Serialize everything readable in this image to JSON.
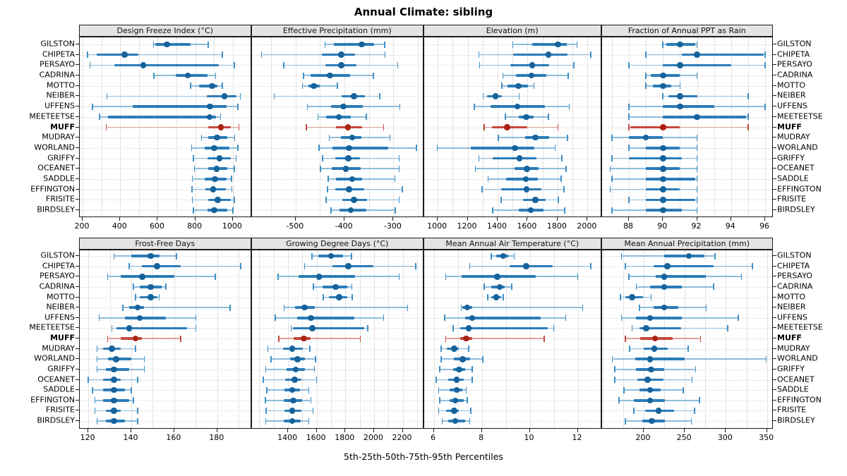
{
  "title": "Annual Climate: sibling",
  "caption": "5th-25th-50th-75th-95th Percentiles",
  "highlight_station": "MUFF",
  "stations": [
    "GILSTON",
    "CHIPETA",
    "PERSAYO",
    "CADRINA",
    "MOTTO",
    "NEIBER",
    "UFFENS",
    "MEETEETSE",
    "MUFF",
    "MUDRAY",
    "WORLAND",
    "GRIFFY",
    "OCEANET",
    "SADDLE",
    "EFFINGTON",
    "FRISITE",
    "BIRDSLEY"
  ],
  "colors": {
    "blue_whisker": "#8ebcdc",
    "blue_cap": "#4090c5",
    "blue_bar": "#2b7cb8",
    "blue_dot": "#16639c",
    "red_whisker": "#e0a19a",
    "red_cap": "#c5483c",
    "red_bar": "#c5483c",
    "red_dot": "#ac2215",
    "grid": "#c9c9c9",
    "row_guide": "#dadada",
    "strip_bg": "#e4e4e4",
    "border": "#1c1c1c",
    "text": "#000000"
  },
  "chart_data": [
    {
      "type": "dotplot",
      "row": 0,
      "col": 0,
      "title": "Design Freeze Index (°C)",
      "xlim": [
        185,
        1100
      ],
      "ticks": [
        200,
        400,
        600,
        800,
        1000
      ],
      "minor_step": 100,
      "percentiles": [
        5,
        25,
        50,
        75,
        95
      ],
      "values": [
        [
          578,
          588,
          650,
          775,
          870
        ],
        [
          227,
          277,
          424,
          498,
          945
        ],
        [
          240,
          370,
          523,
          925,
          1008
        ],
        [
          580,
          695,
          760,
          864,
          908
        ],
        [
          774,
          820,
          889,
          918,
          943
        ],
        [
          330,
          860,
          955,
          1020,
          1040
        ],
        [
          252,
          467,
          879,
          966,
          1026
        ],
        [
          291,
          334,
          876,
          909,
          934
        ],
        [
          326,
          870,
          937,
          990,
          1033
        ],
        [
          833,
          868,
          916,
          970,
          1010
        ],
        [
          780,
          851,
          901,
          980,
          1026
        ],
        [
          791,
          864,
          929,
          991,
          1018
        ],
        [
          795,
          870,
          914,
          970,
          1008
        ],
        [
          785,
          851,
          905,
          966,
          993
        ],
        [
          783,
          855,
          895,
          961,
          995
        ],
        [
          785,
          870,
          920,
          989,
          1008
        ],
        [
          791,
          864,
          901,
          970,
          1001
        ]
      ]
    },
    {
      "type": "dotplot",
      "row": 0,
      "col": 1,
      "title": "Effective Precipitation (mm)",
      "xlim": [
        -590,
        -237
      ],
      "ticks": [
        -500,
        -400,
        -300
      ],
      "minor_step": 50,
      "percentiles": [
        5,
        25,
        50,
        75,
        95
      ],
      "values": [
        [
          -440,
          -422,
          -365,
          -340,
          -318
        ],
        [
          -570,
          -446,
          -407,
          -379,
          -317
        ],
        [
          -524,
          -439,
          -407,
          -375,
          -291
        ],
        [
          -484,
          -470,
          -430,
          -389,
          -341
        ],
        [
          -486,
          -474,
          -463,
          -450,
          -415
        ],
        [
          -544,
          -406,
          -381,
          -358,
          -328
        ],
        [
          -476,
          -428,
          -402,
          -362,
          -287
        ],
        [
          -454,
          -438,
          -412,
          -387,
          -355
        ],
        [
          -478,
          -417,
          -393,
          -364,
          -320
        ],
        [
          -431,
          -407,
          -384,
          -366,
          -307
        ],
        [
          -452,
          -424,
          -391,
          -311,
          -253
        ],
        [
          -445,
          -419,
          -392,
          -369,
          -288
        ],
        [
          -449,
          -426,
          -397,
          -367,
          -288
        ],
        [
          -433,
          -417,
          -384,
          -364,
          -297
        ],
        [
          -435,
          -419,
          -391,
          -360,
          -282
        ],
        [
          -438,
          -405,
          -381,
          -354,
          -288
        ],
        [
          -428,
          -410,
          -387,
          -355,
          -296
        ]
      ]
    },
    {
      "type": "dotplot",
      "row": 0,
      "col": 2,
      "title": "Elevation (m)",
      "xlim": [
        910,
        2095
      ],
      "ticks": [
        1000,
        1200,
        1400,
        1600,
        1800,
        2000
      ],
      "minor_step": 100,
      "percentiles": [
        5,
        25,
        50,
        75,
        95
      ],
      "values": [
        [
          1502,
          1629,
          1802,
          1863,
          1930
        ],
        [
          1275,
          1506,
          1739,
          1867,
          2021
        ],
        [
          1279,
          1483,
          1632,
          1742,
          1910
        ],
        [
          1436,
          1522,
          1627,
          1726,
          1871
        ],
        [
          1428,
          1467,
          1538,
          1601,
          1643
        ],
        [
          1303,
          1331,
          1386,
          1428,
          1543
        ],
        [
          1245,
          1354,
          1533,
          1715,
          1878
        ],
        [
          1452,
          1543,
          1590,
          1640,
          1739
        ],
        [
          1311,
          1361,
          1463,
          1596,
          1802
        ],
        [
          1405,
          1585,
          1651,
          1742,
          1867
        ],
        [
          997,
          1220,
          1515,
          1643,
          1784
        ],
        [
          1275,
          1366,
          1546,
          1659,
          1828
        ],
        [
          1251,
          1511,
          1596,
          1675,
          1857
        ],
        [
          1337,
          1456,
          1588,
          1667,
          1824
        ],
        [
          1295,
          1423,
          1593,
          1690,
          1844
        ],
        [
          1423,
          1569,
          1653,
          1722,
          1805
        ],
        [
          1366,
          1543,
          1621,
          1706,
          1847
        ]
      ]
    },
    {
      "type": "dotplot",
      "row": 0,
      "col": 3,
      "title": "Fraction of Annual PPT as Rain",
      "xlim": [
        86.4,
        96.5
      ],
      "ticks": [
        88,
        90,
        92,
        94,
        96
      ],
      "minor_step": 1,
      "percentiles": [
        5,
        25,
        50,
        75,
        95
      ],
      "values": [
        [
          90.0,
          90.2,
          91.0,
          91.9,
          92.0
        ],
        [
          89.0,
          91.1,
          92.0,
          95.9,
          96.0
        ],
        [
          88.0,
          90.0,
          91.0,
          94.0,
          96.0
        ],
        [
          89.0,
          89.3,
          90.0,
          91.0,
          92.0
        ],
        [
          89.0,
          89.4,
          90.0,
          90.5,
          91.0
        ],
        [
          90.0,
          90.3,
          91.0,
          92.0,
          95.0
        ],
        [
          88.0,
          90.0,
          91.0,
          93.0,
          96.0
        ],
        [
          88.0,
          90.0,
          92.0,
          94.9,
          95.0
        ],
        [
          88.0,
          88.1,
          90.0,
          91.0,
          95.0
        ],
        [
          87.0,
          88.0,
          89.0,
          90.0,
          92.0
        ],
        [
          88.0,
          89.0,
          90.0,
          91.0,
          92.0
        ],
        [
          87.0,
          88.0,
          90.0,
          91.1,
          92.0
        ],
        [
          86.9,
          89.0,
          90.0,
          91.0,
          92.0
        ],
        [
          87.0,
          89.0,
          90.0,
          91.9,
          92.0
        ],
        [
          86.9,
          89.0,
          90.0,
          91.0,
          92.0
        ],
        [
          88.0,
          89.0,
          90.0,
          91.9,
          92.0
        ],
        [
          87.0,
          89.0,
          90.0,
          91.1,
          92.0
        ]
      ]
    },
    {
      "type": "dotplot",
      "row": 1,
      "col": 0,
      "title": "Frost-Free Days",
      "xlim": [
        116,
        196
      ],
      "ticks": [
        120,
        140,
        160,
        180
      ],
      "minor_step": 10,
      "percentiles": [
        5,
        25,
        50,
        75,
        95
      ],
      "values": [
        [
          132,
          140,
          149,
          153,
          161
        ],
        [
          139,
          145,
          152,
          163,
          191
        ],
        [
          129,
          135,
          145,
          160,
          179
        ],
        [
          141,
          144,
          149,
          154,
          156
        ],
        [
          142,
          144,
          149,
          152,
          153
        ],
        [
          136,
          139,
          143,
          146,
          186
        ],
        [
          125,
          137,
          144,
          156,
          170
        ],
        [
          131,
          133,
          139,
          166,
          170
        ],
        [
          129,
          135,
          142,
          145,
          163
        ],
        [
          124,
          127,
          131,
          135,
          142
        ],
        [
          124,
          129,
          133,
          140,
          146
        ],
        [
          124,
          128,
          132,
          139,
          146
        ],
        [
          120,
          127,
          132,
          135,
          143
        ],
        [
          122,
          127,
          132,
          137,
          140
        ],
        [
          123,
          127,
          132,
          139,
          141
        ],
        [
          123,
          128,
          132,
          135,
          143
        ],
        [
          124,
          128,
          132,
          137,
          143
        ]
      ]
    },
    {
      "type": "dotplot",
      "row": 1,
      "col": 1,
      "title": "Growing Degree Days (°C)",
      "xlim": [
        1146,
        2350
      ],
      "ticks": [
        1400,
        1600,
        1800,
        2000,
        2200
      ],
      "minor_step": 100,
      "percentiles": [
        5,
        25,
        50,
        75,
        95
      ],
      "values": [
        [
          1567,
          1613,
          1700,
          1785,
          1842
        ],
        [
          1515,
          1711,
          1821,
          1993,
          2290
        ],
        [
          1331,
          1474,
          1616,
          1867,
          2175
        ],
        [
          1577,
          1641,
          1731,
          1815,
          1846
        ],
        [
          1646,
          1687,
          1756,
          1813,
          1847
        ],
        [
          1372,
          1449,
          1515,
          1585,
          2235
        ],
        [
          1310,
          1465,
          1559,
          1862,
          2067
        ],
        [
          1421,
          1432,
          1569,
          1929,
          1957
        ],
        [
          1335,
          1437,
          1510,
          1556,
          1905
        ],
        [
          1260,
          1367,
          1428,
          1501,
          1551
        ],
        [
          1280,
          1413,
          1465,
          1520,
          1592
        ],
        [
          1245,
          1388,
          1454,
          1520,
          1585
        ],
        [
          1228,
          1380,
          1446,
          1495,
          1600
        ],
        [
          1252,
          1375,
          1428,
          1482,
          1544
        ],
        [
          1241,
          1370,
          1436,
          1498,
          1559
        ],
        [
          1247,
          1375,
          1428,
          1493,
          1575
        ],
        [
          1244,
          1370,
          1429,
          1490,
          1544
        ]
      ]
    },
    {
      "type": "dotplot",
      "row": 1,
      "col": 2,
      "title": "Mean Annual Air Temperature (°C)",
      "xlim": [
        5.6,
        13.0
      ],
      "ticks": [
        6,
        8,
        10,
        12
      ],
      "minor_step": 1,
      "percentiles": [
        5,
        25,
        50,
        75,
        95
      ],
      "values": [
        [
          8.4,
          8.6,
          8.9,
          9.1,
          9.35
        ],
        [
          7.5,
          9.15,
          9.85,
          10.95,
          12.55
        ],
        [
          6.5,
          7.15,
          8.65,
          10.25,
          12.0
        ],
        [
          8.1,
          8.4,
          8.75,
          8.95,
          9.25
        ],
        [
          8.25,
          8.4,
          8.6,
          8.8,
          8.9
        ],
        [
          7.15,
          7.2,
          7.4,
          7.6,
          12.2
        ],
        [
          6.45,
          7.3,
          7.6,
          10.45,
          11.5
        ],
        [
          6.8,
          7.1,
          7.45,
          10.75,
          11.0
        ],
        [
          6.5,
          7.1,
          7.35,
          7.6,
          10.6
        ],
        [
          6.3,
          6.55,
          6.85,
          7.05,
          7.45
        ],
        [
          6.3,
          6.85,
          7.2,
          7.5,
          8.05
        ],
        [
          6.25,
          6.8,
          7.05,
          7.3,
          7.6
        ],
        [
          6.1,
          6.6,
          6.95,
          7.25,
          7.6
        ],
        [
          6.2,
          6.65,
          6.95,
          7.2,
          7.35
        ],
        [
          6.25,
          6.65,
          6.9,
          7.25,
          7.4
        ],
        [
          6.2,
          6.5,
          6.85,
          7.05,
          7.55
        ],
        [
          6.35,
          6.6,
          6.9,
          7.3,
          7.5
        ]
      ]
    },
    {
      "type": "dotplot",
      "row": 1,
      "col": 3,
      "title": "Mean Annual Precipitation (mm)",
      "xlim": [
        149,
        358
      ],
      "ticks": [
        200,
        250,
        300,
        350
      ],
      "minor_step": 25,
      "percentiles": [
        5,
        25,
        50,
        75,
        95
      ],
      "values": [
        [
          173,
          225,
          255,
          274,
          287
        ],
        [
          178,
          212,
          229,
          285,
          332
        ],
        [
          182,
          215,
          225,
          276,
          319
        ],
        [
          191,
          208,
          225,
          246,
          285
        ],
        [
          172,
          178,
          186,
          199,
          209
        ],
        [
          195,
          212,
          225,
          242,
          276
        ],
        [
          173,
          191,
          208,
          246,
          315
        ],
        [
          186,
          195,
          203,
          246,
          302
        ],
        [
          178,
          196,
          214,
          235,
          269
        ],
        [
          183,
          200,
          213,
          229,
          254
        ],
        [
          162,
          190,
          208,
          250,
          349
        ],
        [
          165,
          191,
          209,
          225,
          263
        ],
        [
          165,
          192,
          205,
          224,
          259
        ],
        [
          176,
          195,
          208,
          221,
          248
        ],
        [
          170,
          188,
          208,
          226,
          268
        ],
        [
          188,
          202,
          218,
          237,
          262
        ],
        [
          178,
          198,
          210,
          226,
          258
        ]
      ]
    }
  ]
}
